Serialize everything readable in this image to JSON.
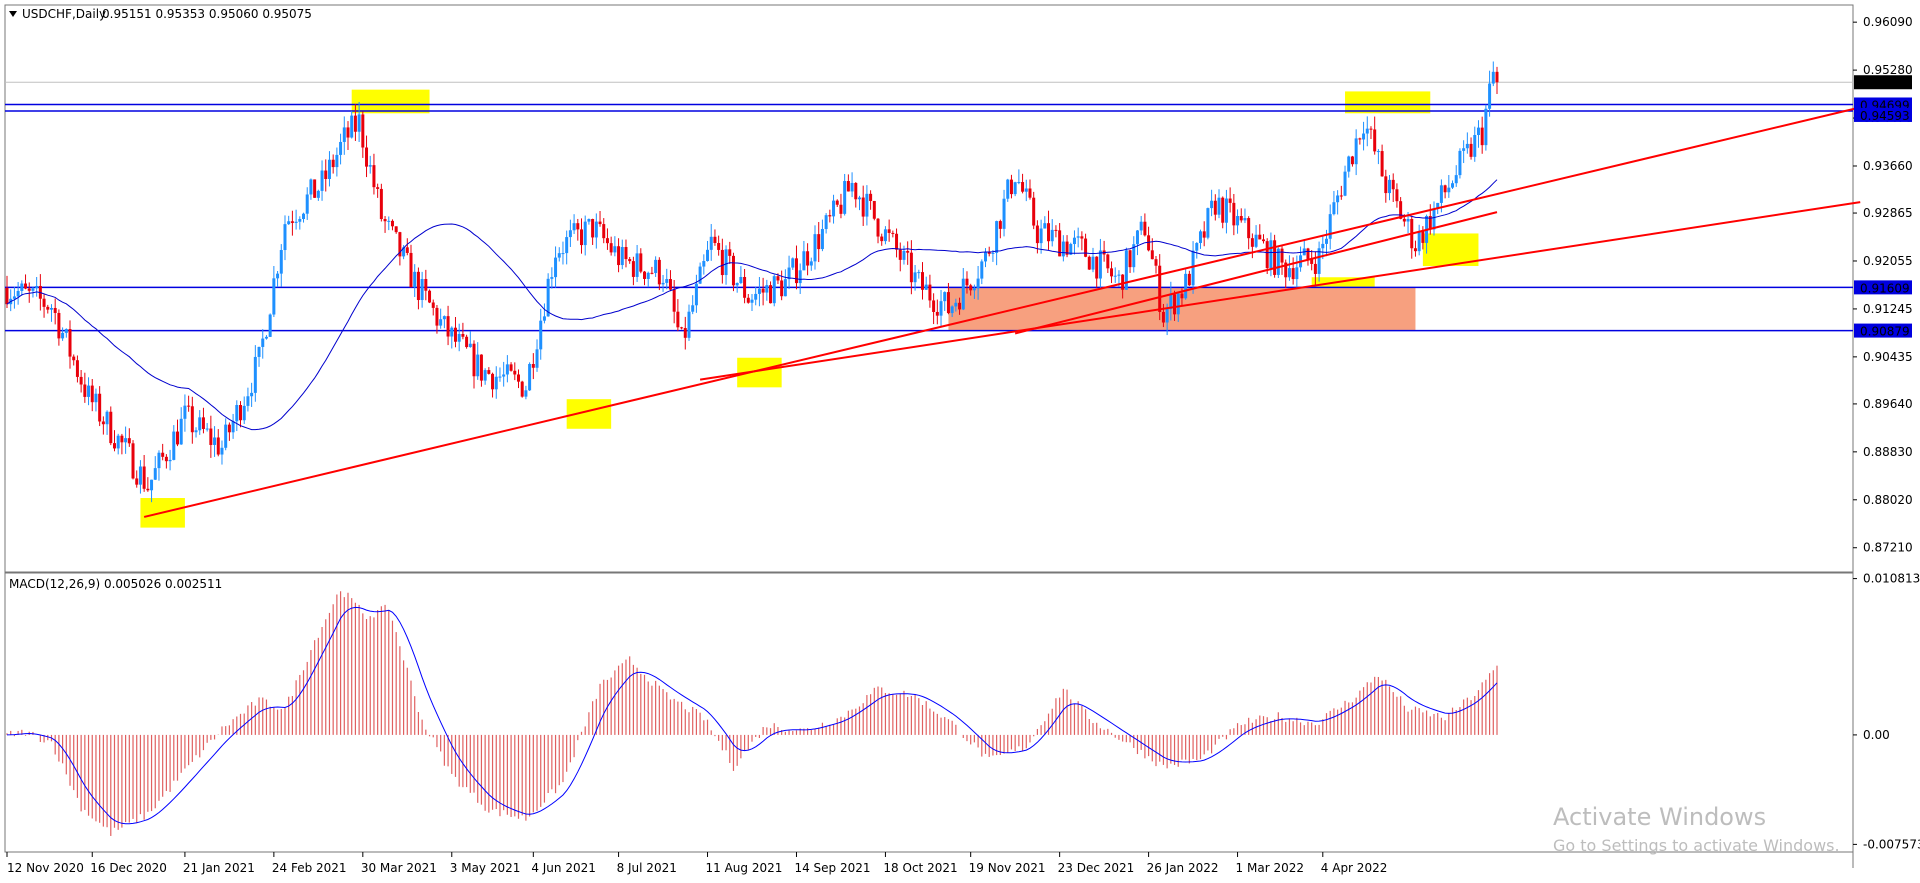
{
  "window": {
    "symbol_line": "USDCHF,Daily",
    "ohlc": "0.95151 0.95353 0.95060 0.95075",
    "dropdown_icon": "triangle-down-icon"
  },
  "macd_header": "MACD(12,26,9) 0.005026 0.002511",
  "watermark": {
    "title": "Activate Windows",
    "subtitle": "Go to Settings to activate Windows."
  },
  "colors": {
    "bull": "#1e90ff",
    "bear": "#e8000b",
    "ma": "#0000cd",
    "trend": "#ff0000",
    "hline": "#0000e0",
    "highlight": "#ffff00",
    "zone": "#f7a07f",
    "hist": "#e06060",
    "signal": "#0000ff"
  },
  "chart_data": [
    {
      "type": "candlestick",
      "symbol": "USDCHF",
      "timeframe": "Daily",
      "ylim": [
        0.868,
        0.9638
      ],
      "y_ticks": [
        "0.96090",
        "0.95280",
        "0.94470",
        "0.93660",
        "0.92865",
        "0.92055",
        "0.91245",
        "0.90435",
        "0.89640",
        "0.88830",
        "0.88020",
        "0.87210"
      ],
      "x_ticks": [
        "12 Nov 2020",
        "16 Dec 2020",
        "21 Jan 2021",
        "24 Feb 2021",
        "30 Mar 2021",
        "3 May 2021",
        "4 Jun 2021",
        "8 Jul 2021",
        "11 Aug 2021",
        "14 Sep 2021",
        "18 Oct 2021",
        "19 Nov 2021",
        "23 Dec 2021",
        "26 Jan 2022",
        "1 Mar 2022",
        "4 Apr 2022"
      ],
      "anchors": [
        {
          "d": 0,
          "p": 0.916
        },
        {
          "d": 12,
          "p": 0.913
        },
        {
          "d": 22,
          "p": 0.8975
        },
        {
          "d": 32,
          "p": 0.8885
        },
        {
          "d": 38,
          "p": 0.8825
        },
        {
          "d": 48,
          "p": 0.894
        },
        {
          "d": 58,
          "p": 0.889
        },
        {
          "d": 68,
          "p": 0.9035
        },
        {
          "d": 75,
          "p": 0.9272
        },
        {
          "d": 85,
          "p": 0.9335
        },
        {
          "d": 91,
          "p": 0.941
        },
        {
          "d": 95,
          "p": 0.944
        },
        {
          "d": 101,
          "p": 0.928
        },
        {
          "d": 110,
          "p": 0.917
        },
        {
          "d": 118,
          "p": 0.909
        },
        {
          "d": 128,
          "p": 0.902
        },
        {
          "d": 140,
          "p": 0.8995
        },
        {
          "d": 148,
          "p": 0.9225
        },
        {
          "d": 158,
          "p": 0.9262
        },
        {
          "d": 166,
          "p": 0.9205
        },
        {
          "d": 177,
          "p": 0.9185
        },
        {
          "d": 182,
          "p": 0.9065
        },
        {
          "d": 190,
          "p": 0.9235
        },
        {
          "d": 200,
          "p": 0.9145
        },
        {
          "d": 210,
          "p": 0.9168
        },
        {
          "d": 222,
          "p": 0.927
        },
        {
          "d": 228,
          "p": 0.9335
        },
        {
          "d": 236,
          "p": 0.926
        },
        {
          "d": 246,
          "p": 0.9165
        },
        {
          "d": 254,
          "p": 0.9125
        },
        {
          "d": 264,
          "p": 0.921
        },
        {
          "d": 272,
          "p": 0.9355
        },
        {
          "d": 278,
          "p": 0.9255
        },
        {
          "d": 290,
          "p": 0.9225
        },
        {
          "d": 300,
          "p": 0.917
        },
        {
          "d": 307,
          "p": 0.9265
        },
        {
          "d": 312,
          "p": 0.9115
        },
        {
          "d": 318,
          "p": 0.9165
        },
        {
          "d": 326,
          "p": 0.9305
        },
        {
          "d": 336,
          "p": 0.9245
        },
        {
          "d": 344,
          "p": 0.9195
        },
        {
          "d": 354,
          "p": 0.9212
        },
        {
          "d": 361,
          "p": 0.9355
        },
        {
          "d": 366,
          "p": 0.9445
        },
        {
          "d": 372,
          "p": 0.9335
        },
        {
          "d": 380,
          "p": 0.9235
        },
        {
          "d": 386,
          "p": 0.93
        },
        {
          "d": 392,
          "p": 0.9365
        },
        {
          "d": 398,
          "p": 0.9425
        },
        {
          "d": 401,
          "p": 0.952
        },
        {
          "d": 402,
          "p": 0.95075
        }
      ],
      "hlines": [
        0.94699,
        0.9459,
        0.91609,
        0.90879
      ],
      "price_labels": [
        "0.95075",
        "0.94699",
        "0.94593",
        "0.91609",
        "0.90879"
      ],
      "current": 0.95075,
      "trendlines": [
        {
          "from": {
            "d": 37,
            "p": 0.8773
          },
          "to": {
            "d": 500,
            "p": 0.9465
          }
        },
        {
          "from": {
            "d": 187,
            "p": 0.9005
          },
          "to": {
            "d": 500,
            "p": 0.9305
          }
        },
        {
          "from": {
            "d": 272,
            "p": 0.9083
          },
          "to": {
            "d": 402,
            "p": 0.9288
          }
        }
      ],
      "highlights": [
        {
          "d0": 93,
          "d1": 114,
          "p0": 0.9455,
          "p1": 0.9495
        },
        {
          "d0": 36,
          "d1": 48,
          "p0": 0.8755,
          "p1": 0.8805
        },
        {
          "d0": 151,
          "d1": 163,
          "p0": 0.8922,
          "p1": 0.8972
        },
        {
          "d0": 197,
          "d1": 209,
          "p0": 0.8992,
          "p1": 0.9042
        },
        {
          "d0": 361,
          "d1": 384,
          "p0": 0.9455,
          "p1": 0.9492
        },
        {
          "d0": 382,
          "d1": 397,
          "p0": 0.9197,
          "p1": 0.9252
        },
        {
          "d0": 352,
          "d1": 369,
          "p0": 0.9162,
          "p1": 0.9178
        }
      ],
      "zone": {
        "d0": 254,
        "d1": 380,
        "p0": 0.90879,
        "p1": 0.91609
      }
    },
    {
      "type": "macd",
      "params": "12,26,9",
      "macd": 0.005026,
      "signal": 0.002511,
      "ylim": [
        -0.0081,
        0.0112
      ],
      "y_ticks": [
        "0.010813",
        "0.00",
        "-0.007573"
      ],
      "anchors": [
        {
          "d": 0,
          "v": 0.0
        },
        {
          "d": 5,
          "v": 0.0002
        },
        {
          "d": 12,
          "v": -0.0005
        },
        {
          "d": 20,
          "v": -0.005
        },
        {
          "d": 28,
          "v": -0.0068
        },
        {
          "d": 38,
          "v": -0.0055
        },
        {
          "d": 48,
          "v": -0.0025
        },
        {
          "d": 58,
          "v": 0.0004
        },
        {
          "d": 68,
          "v": 0.0024
        },
        {
          "d": 75,
          "v": 0.0018
        },
        {
          "d": 83,
          "v": 0.0065
        },
        {
          "d": 90,
          "v": 0.0101
        },
        {
          "d": 97,
          "v": 0.0082
        },
        {
          "d": 103,
          "v": 0.0088
        },
        {
          "d": 112,
          "v": 0.001
        },
        {
          "d": 120,
          "v": -0.0028
        },
        {
          "d": 130,
          "v": -0.0052
        },
        {
          "d": 140,
          "v": -0.0058
        },
        {
          "d": 150,
          "v": -0.0033
        },
        {
          "d": 160,
          "v": 0.0034
        },
        {
          "d": 168,
          "v": 0.0052
        },
        {
          "d": 178,
          "v": 0.0027
        },
        {
          "d": 188,
          "v": 0.0012
        },
        {
          "d": 196,
          "v": -0.0022
        },
        {
          "d": 205,
          "v": 0.0007
        },
        {
          "d": 215,
          "v": 0.0003
        },
        {
          "d": 225,
          "v": 0.0012
        },
        {
          "d": 235,
          "v": 0.0032
        },
        {
          "d": 245,
          "v": 0.0027
        },
        {
          "d": 255,
          "v": 0.0008
        },
        {
          "d": 265,
          "v": -0.0018
        },
        {
          "d": 275,
          "v": -0.0008
        },
        {
          "d": 285,
          "v": 0.0032
        },
        {
          "d": 292,
          "v": 0.0012
        },
        {
          "d": 300,
          "v": -0.0002
        },
        {
          "d": 312,
          "v": -0.0022
        },
        {
          "d": 322,
          "v": -0.0017
        },
        {
          "d": 333,
          "v": 0.0008
        },
        {
          "d": 343,
          "v": 0.0013
        },
        {
          "d": 353,
          "v": 0.0008
        },
        {
          "d": 363,
          "v": 0.0025
        },
        {
          "d": 370,
          "v": 0.0042
        },
        {
          "d": 378,
          "v": 0.0018
        },
        {
          "d": 388,
          "v": 0.0012
        },
        {
          "d": 396,
          "v": 0.0028
        },
        {
          "d": 402,
          "v": 0.0047
        }
      ]
    }
  ]
}
